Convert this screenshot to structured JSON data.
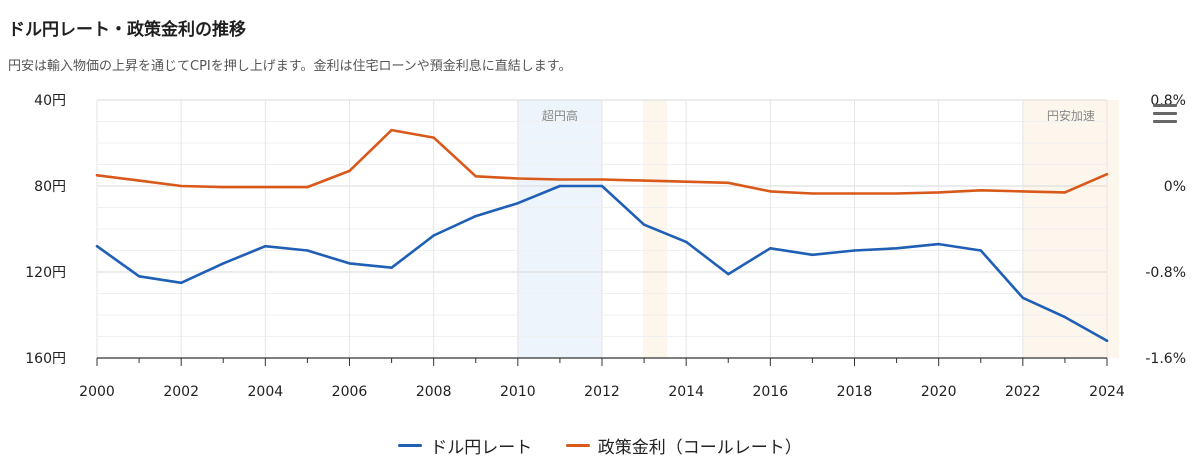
{
  "title": "ドル円レート・政策金利の推移",
  "subtitle": "円安は輸入物価の上昇を通じてCPIを押し上げます。金利は住宅ローンや預金利息に直結します。",
  "menu_icon": "hamburger-menu-icon",
  "colors": {
    "usd_jpy": "#1f5fb5",
    "policy_rate": "#d9591a",
    "band_high_yen": "#eef4fb",
    "band_weak_yen": "#fdf6ec",
    "grid": "#e6e6e6",
    "axis": "#333333"
  },
  "chart_data": {
    "type": "line",
    "x": [
      2000,
      2001,
      2002,
      2003,
      2004,
      2005,
      2006,
      2007,
      2008,
      2009,
      2010,
      2011,
      2012,
      2013,
      2014,
      2015,
      2016,
      2017,
      2018,
      2019,
      2020,
      2021,
      2022,
      2023,
      2024
    ],
    "xlim": [
      2000,
      2024
    ],
    "x_ticks": [
      "2000",
      "2002",
      "2004",
      "2006",
      "2008",
      "2010",
      "2012",
      "2014",
      "2016",
      "2018",
      "2020",
      "2022",
      "2024"
    ],
    "grid": true,
    "legend_position": "bottom-center",
    "y_axes": {
      "left": {
        "reversed": true,
        "ylim": [
          40,
          160
        ],
        "ticks": [
          "40円",
          "80円",
          "120円",
          "160円"
        ]
      },
      "right": {
        "ylim": [
          -1.6,
          0.8
        ],
        "ticks": [
          "0.8%",
          "0%",
          "-0.8%",
          "-1.6%"
        ]
      }
    },
    "series": [
      {
        "name": "ドル円レート",
        "axis": "left",
        "values": [
          108,
          122,
          125,
          116,
          108,
          110,
          116,
          118,
          103,
          94,
          88,
          80,
          80,
          98,
          106,
          121,
          109,
          112,
          110,
          109,
          107,
          110,
          132,
          141,
          152
        ]
      },
      {
        "name": "政策金利（コールレート）",
        "axis": "right",
        "values": [
          0.1,
          0.05,
          0.0,
          -0.01,
          -0.01,
          -0.01,
          0.14,
          0.52,
          0.45,
          0.09,
          0.07,
          0.06,
          0.06,
          0.05,
          0.04,
          0.03,
          -0.05,
          -0.07,
          -0.07,
          -0.07,
          -0.06,
          -0.04,
          -0.05,
          -0.06,
          0.11
        ]
      }
    ],
    "annotations": [
      {
        "label": "超円高",
        "x_start": 2010,
        "x_end": 2012
      },
      {
        "label": "",
        "x_start": 2012.97,
        "x_end": 2013.55
      },
      {
        "label": "円安加速",
        "x_start": 2022,
        "x_end": 2024.3
      }
    ]
  }
}
